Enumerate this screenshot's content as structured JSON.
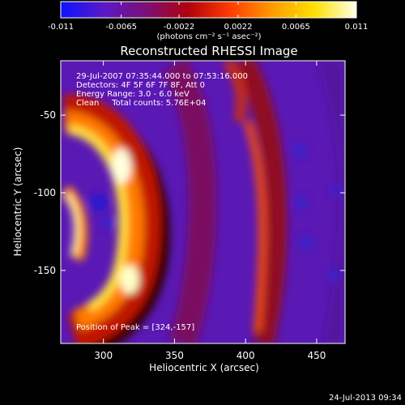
{
  "colorbar": {
    "tick_labels": [
      "-0.011",
      "-0.0065",
      "-0.0022",
      "0.0022",
      "0.0065",
      "0.011"
    ],
    "tick_values": [
      -0.011,
      -0.0065,
      -0.0022,
      0.0022,
      0.0065,
      0.011
    ],
    "range": [
      -0.011,
      0.011
    ],
    "unit_label": "(photons cm⁻² s⁻¹ asec⁻²)"
  },
  "chart_data": {
    "type": "heatmap",
    "title": "Reconstructed RHESSI Image",
    "xlabel": "Heliocentric X (arcsec)",
    "ylabel": "Heliocentric Y (arcsec)",
    "xlim": [
      270,
      470
    ],
    "ylim": [
      -197,
      -15
    ],
    "x_ticks": [
      300,
      350,
      400,
      450
    ],
    "y_ticks": [
      -50,
      -100,
      -150
    ],
    "colormap": [
      "#0a14ff",
      "#5a18c8",
      "#7a1078",
      "#b00010",
      "#ff3a00",
      "#ff9a00",
      "#ffe000",
      "#ffffe8"
    ],
    "annotations": [
      "29-Jul-2007 07:35:44.000 to 07:53:16.000",
      "Detectors: 4F 5F 6F 7F 8F, Att 0",
      "Energy Range: 3.0 - 6.0 keV",
      "Clean     Total counts: 5.76E+04"
    ],
    "peak_label": "Position of Peak = [324,-157]",
    "peak": [
      324,
      -157
    ]
  },
  "footer": {
    "timestamp": "24-Jul-2013 09:34"
  }
}
